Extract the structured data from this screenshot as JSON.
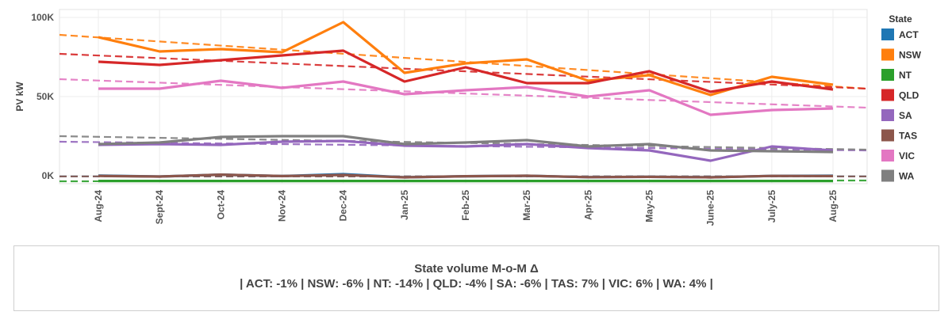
{
  "chart_data": {
    "type": "line",
    "ylabel": "PV kW",
    "ylim": [
      -5000,
      101000
    ],
    "yticks": [
      {
        "value": 0,
        "label": "0K"
      },
      {
        "value": 50000,
        "label": "50K"
      },
      {
        "value": 100000,
        "label": "100K"
      }
    ],
    "categories": [
      "Aug-24",
      "Sept-24",
      "Oct-24",
      "Nov-24",
      "Dec-24",
      "Jan-25",
      "Feb-25",
      "Mar-25",
      "Apr-25",
      "May-25",
      "June-25",
      "July-25",
      "Aug-25"
    ],
    "grid": true,
    "trend_lines": "dashed",
    "legend_position": "right",
    "legend_title": "State",
    "series": [
      {
        "name": "ACT",
        "color": "#1f77b4",
        "values": [
          100,
          -500,
          700,
          -200,
          1000,
          -1000,
          -300,
          0,
          -900,
          -700,
          -1000,
          -100,
          0
        ],
        "trend": [
          -400,
          -400
        ]
      },
      {
        "name": "NSW",
        "color": "#ff7f0e",
        "values": [
          87500,
          78500,
          80000,
          78000,
          97000,
          65000,
          71000,
          73500,
          60000,
          63500,
          51000,
          62500,
          57500
        ],
        "trend": [
          89000,
          55000
        ]
      },
      {
        "name": "NT",
        "color": "#2ca02c",
        "values": [
          -3300,
          -3300,
          -3300,
          -3300,
          -3300,
          -3300,
          -3300,
          -3300,
          -3300,
          -3300,
          -3300,
          -3300,
          -3300
        ],
        "trend": [
          -3500,
          -3000
        ]
      },
      {
        "name": "QLD",
        "color": "#d62728",
        "values": [
          72000,
          70000,
          73000,
          76000,
          79000,
          59500,
          68500,
          58500,
          58500,
          66000,
          53000,
          59500,
          54500
        ],
        "trend": [
          77000,
          55000
        ]
      },
      {
        "name": "SA",
        "color": "#9467bd",
        "values": [
          19500,
          20000,
          19500,
          21500,
          22000,
          19000,
          18500,
          20000,
          17500,
          16000,
          9500,
          18500,
          16000
        ],
        "trend": [
          21500,
          16000
        ]
      },
      {
        "name": "TAS",
        "color": "#8c564b",
        "values": [
          -100,
          -500,
          700,
          -200,
          500,
          -1000,
          -300,
          0,
          -900,
          -700,
          -1000,
          -100,
          -200
        ],
        "trend": [
          -400,
          -400
        ]
      },
      {
        "name": "VIC",
        "color": "#e377c2",
        "values": [
          55000,
          55000,
          60000,
          55500,
          59500,
          51500,
          54000,
          56000,
          50000,
          54000,
          38500,
          41500,
          42500
        ],
        "trend": [
          61000,
          43000
        ]
      },
      {
        "name": "WA",
        "color": "#7f7f7f",
        "values": [
          20000,
          21000,
          24500,
          25000,
          25000,
          20000,
          21000,
          22500,
          18500,
          20000,
          16000,
          15500,
          15000
        ],
        "trend": [
          25000,
          16500
        ]
      }
    ]
  },
  "summary": {
    "title": "State volume M-o-M Δ",
    "text": "| ACT: -1% | NSW: -6% | NT: -14% | QLD: -4% | SA: -6% | TAS: 7% | VIC: 6% | WA: 4% |"
  }
}
